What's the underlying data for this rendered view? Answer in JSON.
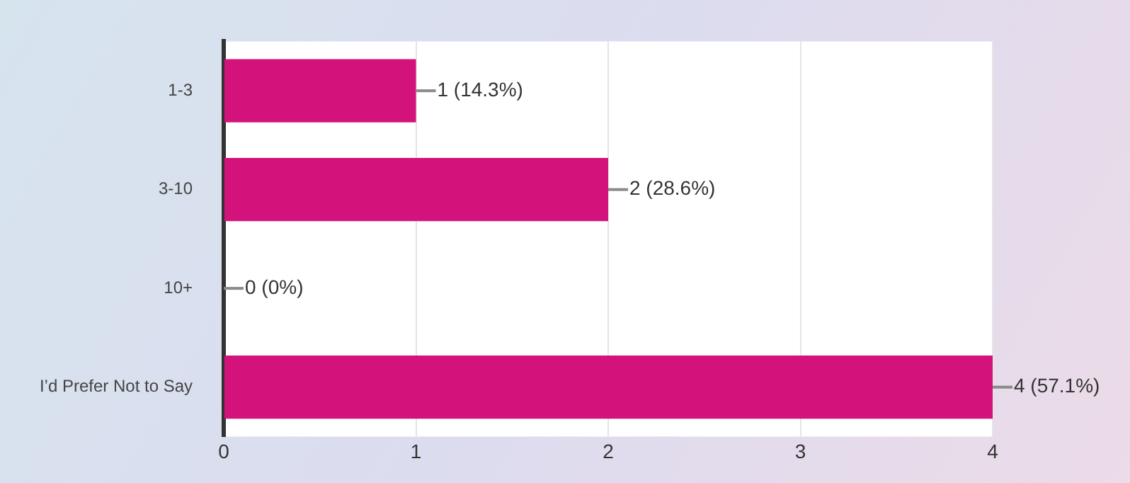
{
  "chart_data": {
    "type": "bar",
    "orientation": "horizontal",
    "categories": [
      "1-3",
      "3-10",
      "10+",
      "I’d Prefer Not to Say"
    ],
    "values": [
      1,
      2,
      0,
      4
    ],
    "color": "#d4127c",
    "value_labels": [
      "1 (14.3%)",
      "2 (28.6%)",
      "0 (0%)",
      "4 (57.1%)"
    ],
    "xlim": [
      0,
      4
    ],
    "xticks": [
      0,
      1,
      2,
      3,
      4
    ],
    "grid": "x",
    "legend": false
  }
}
